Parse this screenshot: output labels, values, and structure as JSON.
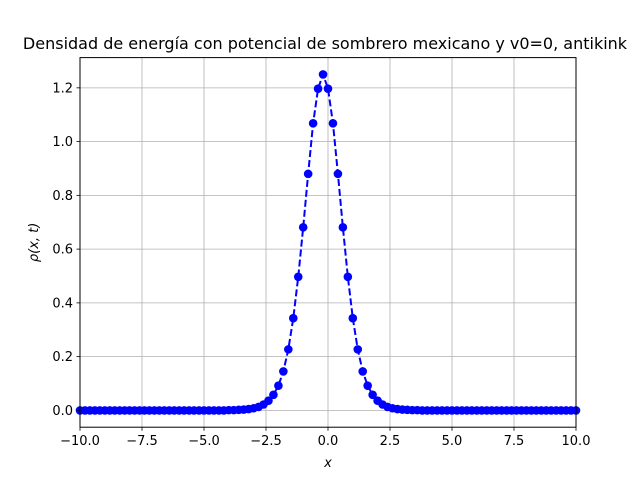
{
  "chart_data": {
    "type": "line",
    "title": "Densidad de energía con potencial de sombrero mexicano y v0=0, antikink",
    "xlabel": "x",
    "ylabel": "ρ(x, t)",
    "xlim": [
      -10,
      10
    ],
    "ylim": [
      -0.0625,
      1.3125
    ],
    "xticks": [
      -10,
      -7.5,
      -5,
      -2.5,
      0,
      2.5,
      5,
      7.5,
      10
    ],
    "xtick_labels": [
      "−10.0",
      "−7.5",
      "−5.0",
      "−2.5",
      "0.0",
      "2.5",
      "5.0",
      "7.5",
      "10.0"
    ],
    "yticks": [
      0,
      0.2,
      0.4,
      0.6,
      0.8,
      1.0,
      1.2
    ],
    "ytick_labels": [
      "0.0",
      "0.2",
      "0.4",
      "0.6",
      "0.8",
      "1.0",
      "1.2"
    ],
    "grid": true,
    "style": {
      "color": "#0000ff",
      "linestyle": "dashed",
      "marker": "circle"
    },
    "series": [
      {
        "x": [
          -10,
          -9.8,
          -9.6,
          -9.4,
          -9.2,
          -9,
          -8.8,
          -8.6,
          -8.4,
          -8.2,
          -8,
          -7.8,
          -7.6,
          -7.4,
          -7.2,
          -7,
          -6.8,
          -6.6,
          -6.4,
          -6.2,
          -6,
          -5.8,
          -5.6,
          -5.4,
          -5.2,
          -5,
          -4.8,
          -4.6,
          -4.4,
          -4.2,
          -4,
          -3.8,
          -3.6,
          -3.4,
          -3.2,
          -3,
          -2.8,
          -2.6,
          -2.4,
          -2.2,
          -2,
          -1.8,
          -1.6,
          -1.4,
          -1.2,
          -1,
          -0.8,
          -0.6,
          -0.4,
          -0.2,
          0,
          0.2,
          0.4,
          0.6,
          0.8,
          1,
          1.2,
          1.4,
          1.6,
          1.8,
          2,
          2.2,
          2.4,
          2.6,
          2.8,
          3,
          3.2,
          3.4,
          3.6,
          3.8,
          4,
          4.2,
          4.4,
          4.6,
          4.8,
          5,
          5.2,
          5.4,
          5.6,
          5.8,
          6,
          6.2,
          6.4,
          6.6,
          6.8,
          7,
          7.2,
          7.4,
          7.6,
          7.8,
          8,
          8.2,
          8.4,
          8.6,
          8.8,
          9,
          9.2,
          9.4,
          9.6,
          9.8,
          10
        ],
        "y": [
          0,
          0,
          0,
          0,
          0,
          0,
          0,
          0,
          0,
          0,
          0,
          0,
          0,
          0,
          0,
          0,
          0,
          0,
          0,
          0,
          0,
          0,
          0,
          0,
          0,
          0,
          0,
          0,
          0,
          0,
          0.001,
          0.001,
          0.002,
          0.003,
          0.005,
          0.008,
          0.013,
          0.022,
          0.036,
          0.058,
          0.092,
          0.145,
          0.227,
          0.343,
          0.497,
          0.681,
          0.88,
          1.068,
          1.197,
          1.25,
          1.197,
          1.068,
          0.88,
          0.681,
          0.497,
          0.343,
          0.227,
          0.145,
          0.092,
          0.058,
          0.036,
          0.022,
          0.013,
          0.008,
          0.005,
          0.003,
          0.002,
          0.001,
          0.001,
          0,
          0,
          0,
          0,
          0,
          0,
          0,
          0,
          0,
          0,
          0,
          0,
          0,
          0,
          0,
          0,
          0,
          0,
          0,
          0,
          0,
          0,
          0,
          0,
          0,
          0,
          0,
          0,
          0,
          0,
          0,
          0
        ]
      }
    ]
  }
}
